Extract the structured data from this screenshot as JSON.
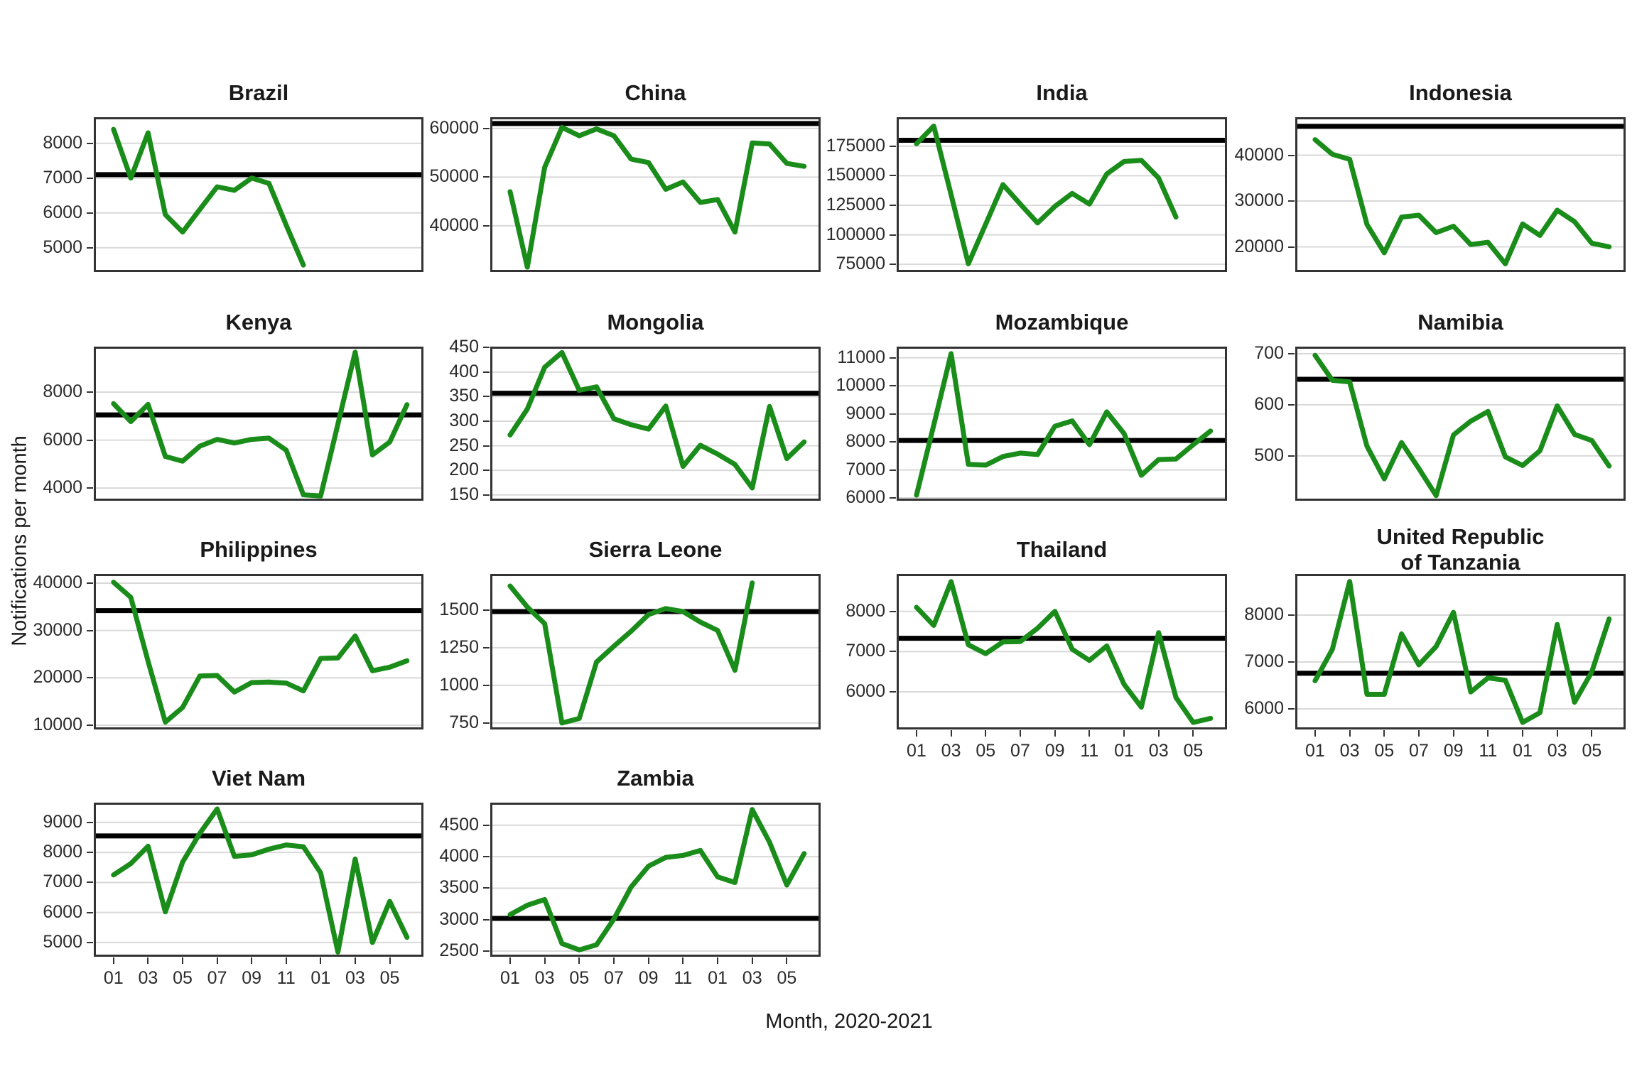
{
  "page": {
    "y_axis_label": "Notifications per month",
    "x_axis_label": "Month, 2020-2021"
  },
  "colors": {
    "line": "#1a8c1a",
    "ref_line": "#000000",
    "grid": "#d9d9d9",
    "panel_border": "#333333"
  },
  "x_tick_labels": [
    "01",
    "03",
    "05",
    "07",
    "09",
    "11",
    "01",
    "03",
    "05"
  ],
  "n_months": 18,
  "chart_data": [
    {
      "type": "line",
      "title": "Brazil",
      "values": [
        8400,
        7000,
        8300,
        5950,
        5450,
        6100,
        6750,
        6650,
        7000,
        6850,
        5650,
        4500
      ],
      "ref_value": 7100,
      "ylim": [
        4300,
        8750
      ],
      "yticks": [
        8000,
        7000,
        6000,
        5000
      ],
      "show_x_axis": false
    },
    {
      "type": "line",
      "title": "China",
      "values": [
        47000,
        31500,
        52000,
        60200,
        58500,
        59900,
        58500,
        53700,
        53000,
        47500,
        49000,
        44800,
        45400,
        38700,
        57000,
        56800,
        52800,
        52200
      ],
      "ref_value": 61000,
      "ylim": [
        30500,
        62300
      ],
      "yticks": [
        60000,
        50000,
        40000
      ],
      "show_x_axis": false
    },
    {
      "type": "line",
      "title": "India",
      "values": [
        177000,
        192000,
        134000,
        75500,
        109000,
        142500,
        126000,
        110000,
        124000,
        135000,
        126000,
        151500,
        162000,
        163000,
        148000,
        115000
      ],
      "ref_value": 180000,
      "ylim": [
        68500,
        199500
      ],
      "yticks": [
        175000,
        150000,
        125000,
        100000,
        75000
      ],
      "show_x_axis": false
    },
    {
      "type": "line",
      "title": "Indonesia",
      "values": [
        43400,
        40200,
        39100,
        24900,
        18700,
        26500,
        26900,
        23100,
        24500,
        20500,
        21000,
        16300,
        25000,
        22500,
        28000,
        25500,
        20800,
        20000
      ],
      "ref_value": 46300,
      "ylim": [
        14500,
        48300
      ],
      "yticks": [
        40000,
        30000,
        20000
      ],
      "show_x_axis": false
    },
    {
      "type": "line",
      "title": "Kenya",
      "values": [
        7520,
        6770,
        7490,
        5320,
        5120,
        5750,
        6030,
        5880,
        6030,
        6080,
        5580,
        3720,
        3670,
        6670,
        9670,
        5380,
        5920,
        7480
      ],
      "ref_value": 7050,
      "ylim": [
        3470,
        9900
      ],
      "yticks": [
        8000,
        6000,
        4000
      ],
      "show_x_axis": false
    },
    {
      "type": "line",
      "title": "Mongolia",
      "values": [
        272,
        325,
        410,
        440,
        363,
        370,
        305,
        293,
        284,
        331,
        208,
        251,
        233,
        212,
        164,
        330,
        224,
        258
      ],
      "ref_value": 357,
      "ylim": [
        138,
        452
      ],
      "yticks": [
        450,
        400,
        350,
        300,
        250,
        200,
        150
      ],
      "show_x_axis": false
    },
    {
      "type": "line",
      "title": "Mozambique",
      "values": [
        6100,
        8600,
        11150,
        7200,
        7170,
        7480,
        7600,
        7550,
        8560,
        8750,
        7900,
        9070,
        8300,
        6810,
        7370,
        7390,
        7900,
        8390
      ],
      "ref_value": 8050,
      "ylim": [
        5900,
        11400
      ],
      "yticks": [
        11000,
        10000,
        9000,
        8000,
        7000,
        6000
      ],
      "show_x_axis": false
    },
    {
      "type": "line",
      "title": "Namibia",
      "values": [
        697,
        648,
        645,
        519,
        455,
        526,
        475,
        422,
        541,
        568,
        587,
        498,
        481,
        510,
        598,
        542,
        530,
        480
      ],
      "ref_value": 650,
      "ylim": [
        412,
        714
      ],
      "yticks": [
        700,
        600,
        500
      ],
      "show_x_axis": false
    },
    {
      "type": "line",
      "title": "Philippines",
      "values": [
        40200,
        37000,
        23500,
        10650,
        13750,
        20400,
        20500,
        17000,
        19000,
        19100,
        18900,
        17250,
        24100,
        24200,
        28850,
        21500,
        22250,
        23600
      ],
      "ref_value": 34200,
      "ylim": [
        9100,
        41950
      ],
      "yticks": [
        40000,
        30000,
        20000,
        10000
      ],
      "show_x_axis": false
    },
    {
      "type": "line",
      "title": "Sierra Leone",
      "values": [
        1660,
        1520,
        1410,
        750,
        780,
        1155,
        1260,
        1360,
        1470,
        1510,
        1490,
        1420,
        1365,
        1100,
        1680
      ],
      "ref_value": 1490,
      "ylim": [
        707,
        1740
      ],
      "yticks": [
        1500,
        1250,
        1000,
        750
      ],
      "show_x_axis": false
    },
    {
      "type": "line",
      "title": "Thailand",
      "values": [
        8100,
        7650,
        8740,
        7170,
        6950,
        7240,
        7250,
        7580,
        8000,
        7060,
        6780,
        7140,
        6190,
        5620,
        7470,
        5860,
        5240,
        5340
      ],
      "ref_value": 7330,
      "ylim": [
        5065,
        8930
      ],
      "yticks": [
        8000,
        7000,
        6000
      ],
      "show_x_axis": true
    },
    {
      "type": "line",
      "title": "United Republic",
      "title2": "of Tanzania",
      "values": [
        6600,
        7270,
        8720,
        6310,
        6310,
        7600,
        6940,
        7330,
        8060,
        6360,
        6660,
        6610,
        5710,
        5920,
        7800,
        6140,
        6790,
        7920
      ],
      "ref_value": 6760,
      "ylim": [
        5560,
        8880
      ],
      "yticks": [
        8000,
        7000,
        6000
      ],
      "show_x_axis": true
    },
    {
      "type": "line",
      "title": "Viet Nam",
      "values": [
        7250,
        7630,
        8210,
        6020,
        7680,
        8640,
        9450,
        7870,
        7920,
        8110,
        8250,
        8190,
        7320,
        4680,
        7780,
        5000,
        6370,
        5170
      ],
      "ref_value": 8550,
      "ylim": [
        4525,
        9660
      ],
      "yticks": [
        9000,
        8000,
        7000,
        6000,
        5000
      ],
      "show_x_axis": true
    },
    {
      "type": "line",
      "title": "Zambia",
      "values": [
        3080,
        3230,
        3320,
        2620,
        2520,
        2600,
        3010,
        3520,
        3850,
        3990,
        4020,
        4100,
        3680,
        3590,
        4750,
        4230,
        3550,
        4050
      ],
      "ref_value": 3020,
      "ylim": [
        2410,
        4860
      ],
      "yticks": [
        4500,
        4000,
        3500,
        3000,
        2500
      ],
      "show_x_axis": true
    }
  ]
}
